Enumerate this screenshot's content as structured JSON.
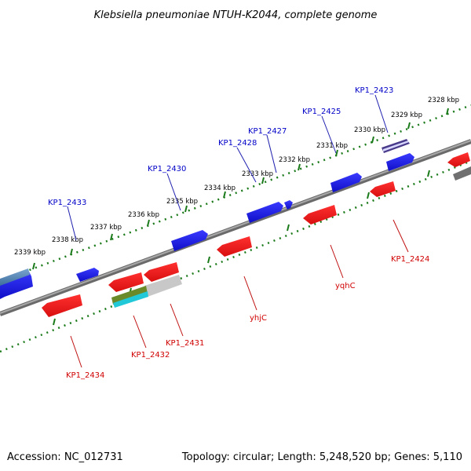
{
  "title": "Klebsiella pneumoniae NTUH-K2044, complete genome",
  "footer": {
    "accession": "Accession: NC_012731",
    "summary": "Topology: circular; Length: 5,248,520 bp; Genes: 5,110"
  },
  "colors": {
    "forward_gene": "#1f1fe6",
    "reverse_gene": "#ef1a1a",
    "backbone": "#8a8a8a",
    "tick": "#1a7a1a",
    "forward_label": "#0000c8",
    "reverse_label": "#d00000"
  },
  "kbp_labels": [
    "2328 kbp",
    "2329 kbp",
    "2330 kbp",
    "2331 kbp",
    "2332 kbp",
    "2333 kbp",
    "2334 kbp",
    "2335 kbp",
    "2336 kbp",
    "2337 kbp",
    "2338 kbp",
    "2339 kbp"
  ],
  "forward_genes": [
    "KP1_2423",
    "KP1_2425",
    "KP1_2427",
    "KP1_2428",
    "KP1_2430",
    "KP1_2433"
  ],
  "reverse_genes": [
    "KP1_2424",
    "yqhC",
    "yhjC",
    "KP1_2431",
    "KP1_2432",
    "KP1_2434"
  ]
}
